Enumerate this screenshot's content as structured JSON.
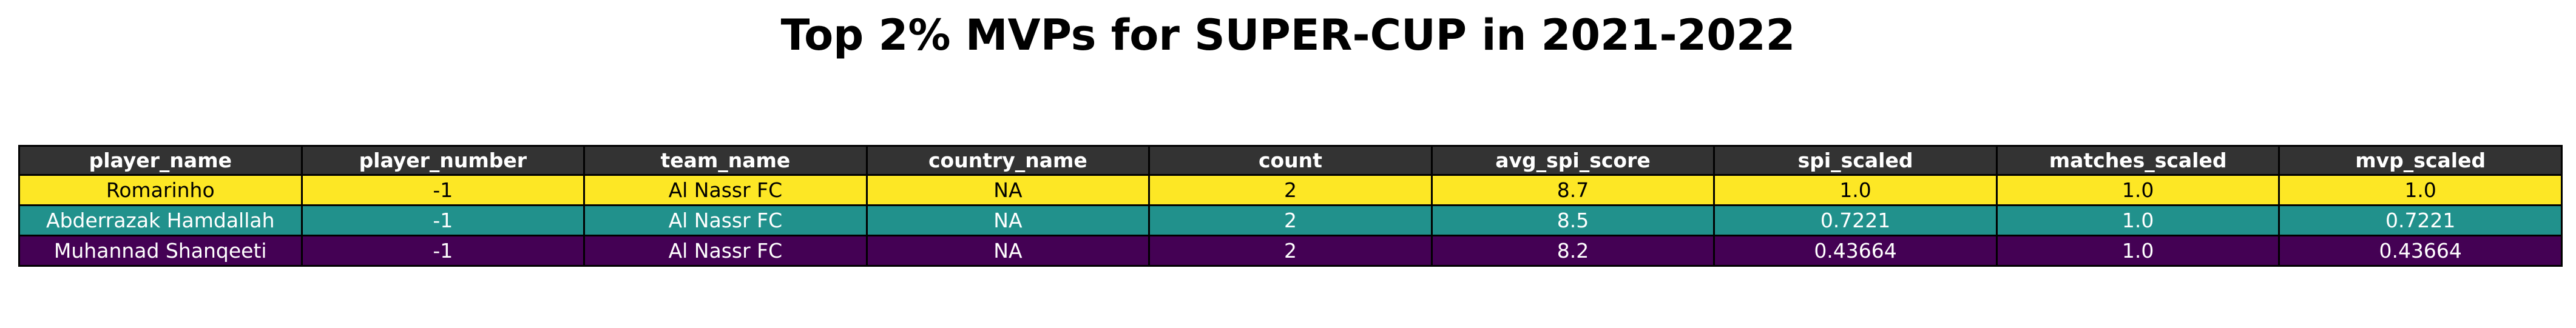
{
  "chart_data": {
    "type": "table",
    "title": "Top 2% MVPs for SUPER-CUP in 2021-2022",
    "columns": [
      "player_name",
      "player_number",
      "team_name",
      "country_name",
      "count",
      "avg_spi_score",
      "spi_scaled",
      "matches_scaled",
      "mvp_scaled"
    ],
    "rows": [
      {
        "cells": [
          "Romarinho",
          "-1",
          "Al Nassr FC",
          "NA",
          "2",
          "8.7",
          "1.0",
          "1.0",
          "1.0"
        ],
        "row_color": "#fde725",
        "text_color": "#000000"
      },
      {
        "cells": [
          "Abderrazak Hamdallah",
          "-1",
          "Al Nassr FC",
          "NA",
          "2",
          "8.5",
          "0.7221",
          "1.0",
          "0.7221"
        ],
        "row_color": "#21918c",
        "text_color": "#ffffff"
      },
      {
        "cells": [
          "Muhannad Shanqeeti",
          "-1",
          "Al Nassr FC",
          "NA",
          "2",
          "8.2",
          "0.43664",
          "1.0",
          "0.43664"
        ],
        "row_color": "#440154",
        "text_color": "#ffffff"
      }
    ],
    "header_color": "#333333",
    "header_text_color": "#ffffff"
  }
}
